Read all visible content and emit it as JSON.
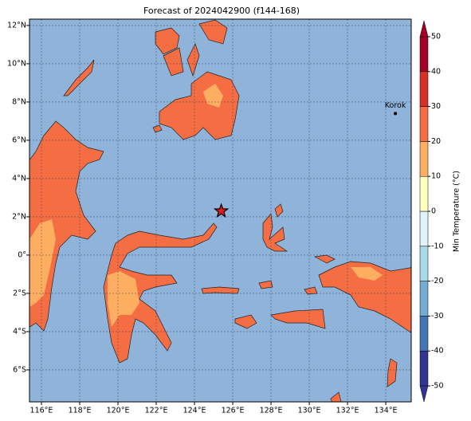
{
  "chart_data": {
    "type": "map",
    "title": "Forecast of 2024042900 (f144-168)",
    "xlim": [
      115.375,
      135.33
    ],
    "ylim": [
      -7.67,
      12.33
    ],
    "xticks": [
      {
        "value": 116,
        "label": "116°E"
      },
      {
        "value": 118,
        "label": "118°E"
      },
      {
        "value": 120,
        "label": "120°E"
      },
      {
        "value": 122,
        "label": "122°E"
      },
      {
        "value": 124,
        "label": "124°E"
      },
      {
        "value": 126,
        "label": "126°E"
      },
      {
        "value": 128,
        "label": "128°E"
      },
      {
        "value": 130,
        "label": "130°E"
      },
      {
        "value": 132,
        "label": "132°E"
      },
      {
        "value": 134,
        "label": "134°E"
      }
    ],
    "yticks": [
      {
        "value": -6,
        "label": "6°S"
      },
      {
        "value": -4,
        "label": "4°S"
      },
      {
        "value": -2,
        "label": "2°S"
      },
      {
        "value": 0,
        "label": "0°"
      },
      {
        "value": 2,
        "label": "2°N"
      },
      {
        "value": 4,
        "label": "4°N"
      },
      {
        "value": 6,
        "label": "6°N"
      },
      {
        "value": 8,
        "label": "8°N"
      },
      {
        "value": 10,
        "label": "10°N"
      },
      {
        "value": 12,
        "label": "12°N"
      }
    ],
    "grid": true,
    "colorbar": {
      "label": "Min Temperature (°C)",
      "ticks": [
        -50,
        -40,
        -30,
        -20,
        -10,
        0,
        10,
        20,
        30,
        40,
        50
      ],
      "colors": [
        "#313695",
        "#4575b4",
        "#74add1",
        "#abd9e9",
        "#e0f3f8",
        "#ffffbf",
        "#fdae61",
        "#f46d43",
        "#d73027",
        "#a50026"
      ],
      "extend": "both"
    },
    "cities": [
      {
        "name": "Korok",
        "x": 134.5,
        "y": 7.4
      }
    ],
    "marker": {
      "x": 125.4,
      "y": 2.3
    }
  }
}
